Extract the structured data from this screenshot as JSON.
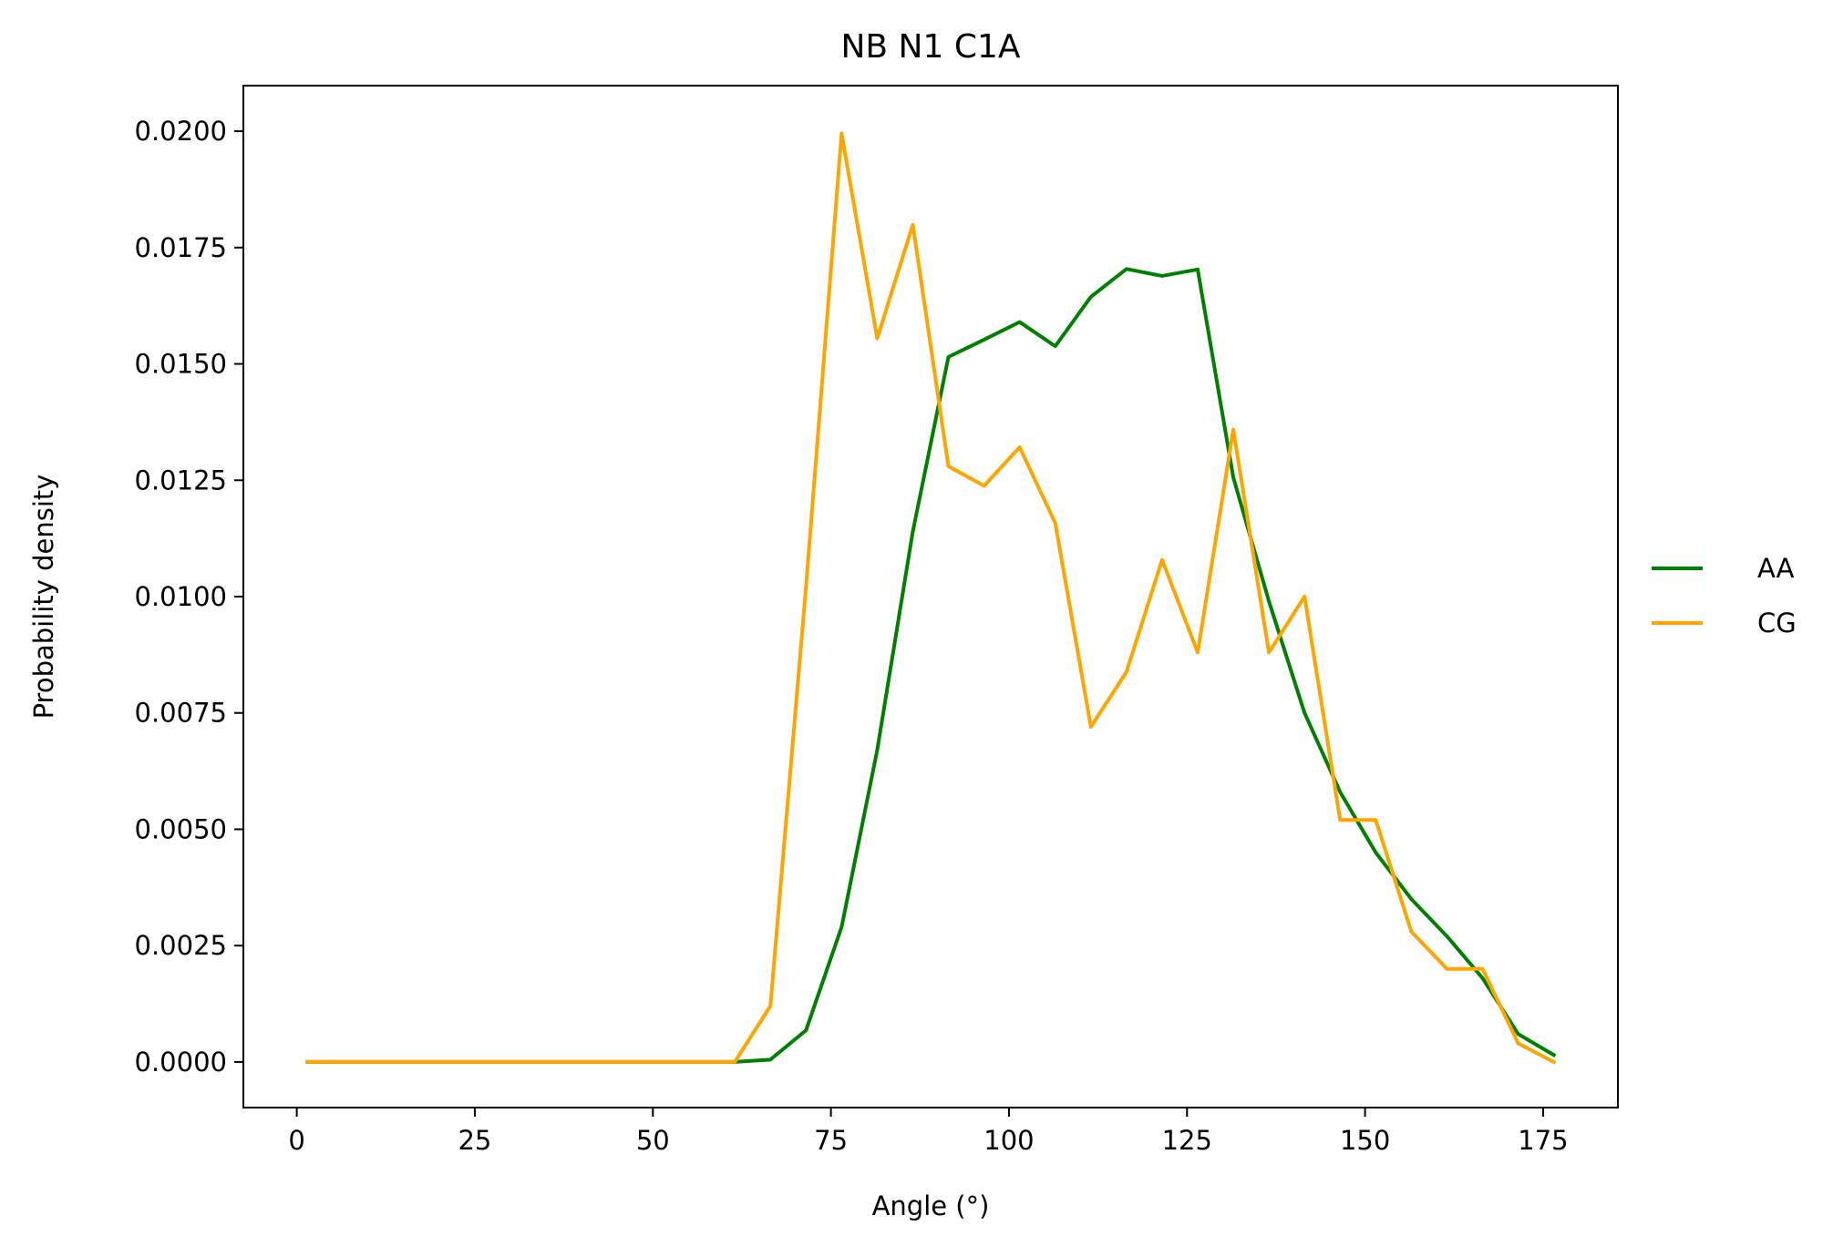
{
  "chart_data": {
    "type": "line",
    "title": "NB N1 C1A",
    "xlabel": "Angle (°)",
    "ylabel": "Probability density",
    "xlim": [
      -7.5,
      185.5
    ],
    "ylim": [
      -0.00098,
      0.02098
    ],
    "xticks": [
      0,
      25,
      50,
      75,
      100,
      125,
      150,
      175
    ],
    "xtick_labels": [
      "0",
      "25",
      "50",
      "75",
      "100",
      "125",
      "150",
      "175"
    ],
    "yticks": [
      0.0,
      0.0025,
      0.005,
      0.0075,
      0.01,
      0.0125,
      0.015,
      0.0175,
      0.02
    ],
    "ytick_labels": [
      "0.0000",
      "0.0025",
      "0.0050",
      "0.0075",
      "0.0100",
      "0.0125",
      "0.0150",
      "0.0175",
      "0.0200"
    ],
    "grid": false,
    "legend_position": "center-right outside",
    "x": [
      1.5,
      6.5,
      11.5,
      16.5,
      21.5,
      26.5,
      31.5,
      36.5,
      41.5,
      46.5,
      51.5,
      56.5,
      61.5,
      66.5,
      71.5,
      76.5,
      81.5,
      86.5,
      91.5,
      96.5,
      101.5,
      106.5,
      111.5,
      116.5,
      121.5,
      126.5,
      131.5,
      136.5,
      141.5,
      146.5,
      151.5,
      156.5,
      161.5,
      166.5,
      171.5,
      176.5
    ],
    "series": [
      {
        "name": "AA",
        "color": "#008000",
        "values": [
          0,
          0,
          0,
          0,
          0,
          0,
          0,
          0,
          0,
          0,
          0,
          0,
          0.0,
          5e-05,
          0.00068,
          0.0029,
          0.0067,
          0.0114,
          0.01515,
          0.01552,
          0.0159,
          0.01538,
          0.01644,
          0.01704,
          0.01689,
          0.01703,
          0.01256,
          0.0099,
          0.0075,
          0.0058,
          0.0045,
          0.0035,
          0.0027,
          0.0018,
          0.0006,
          0.00015
        ]
      },
      {
        "name": "CG",
        "color": "#ffa500",
        "values": [
          0,
          0,
          0,
          0,
          0,
          0,
          0,
          0,
          0,
          0,
          0,
          0,
          0,
          0.0012,
          0.0102,
          0.01995,
          0.01555,
          0.01799,
          0.0128,
          0.01238,
          0.01321,
          0.01158,
          0.0072,
          0.00838,
          0.01079,
          0.0088,
          0.01359,
          0.0088,
          0.01,
          0.0052,
          0.0052,
          0.0028,
          0.002,
          0.002,
          0.0004,
          0.0
        ]
      }
    ]
  }
}
